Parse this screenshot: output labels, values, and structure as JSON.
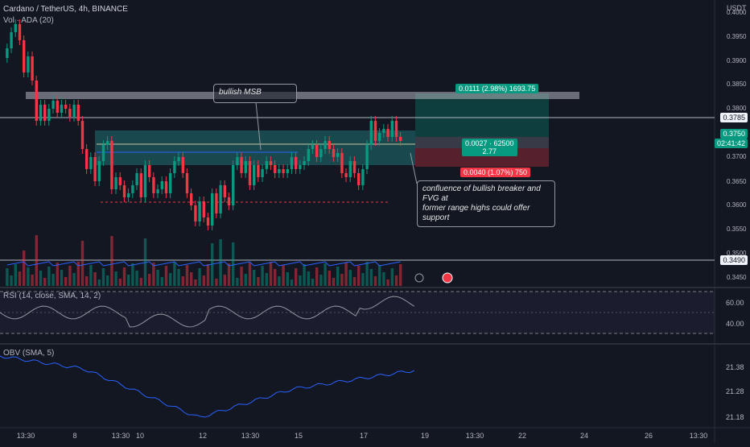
{
  "header": {
    "symbol_line": "Cardano / TetherUS, 4h, BINANCE",
    "volume_legend": "Vol · ADA (20)",
    "currency": "USDT"
  },
  "price_axis": {
    "ticks": [
      "0.4000",
      "0.3950",
      "0.3900",
      "0.3850",
      "0.3800",
      "0.3750",
      "0.3700",
      "0.3650",
      "0.3600",
      "0.3550",
      "0.3500",
      "0.3450"
    ],
    "marker_price": "0.3785",
    "current_price": "0.3750",
    "countdown": "02:41:42",
    "marker_low": "0.3490"
  },
  "rsi_panel": {
    "legend": "RSI (14, close, SMA, 14, 2)",
    "ticks": [
      "60.00",
      "40.00"
    ]
  },
  "obv_panel": {
    "legend": "OBV (SMA, 5)",
    "ticks": [
      "21.38",
      "21.28",
      "21.18"
    ]
  },
  "time_axis": {
    "labels": [
      "13:30",
      "8",
      "13:30",
      "10",
      "12",
      "13:30",
      "15",
      "17",
      "19",
      "13:30",
      "22",
      "24",
      "26",
      "13:30"
    ]
  },
  "annotations": {
    "msb_label": "bullish MSB",
    "support_note_line1": "confluence of bullish breaker and FVG at",
    "support_note_line2": "former range highs could offer support"
  },
  "position_tool": {
    "target_label": "0.0111 (2.98%) 1693.75",
    "entry_label_line1": "0.0027 · 62500",
    "entry_label_line2": "2.77",
    "stop_label": "0.0040 (1.07%) 750"
  },
  "colors": {
    "background": "#131722",
    "bull": "#089981",
    "bear": "#f23645",
    "rsi_line": "#9598a1",
    "obv_line": "#2962ff",
    "zone": "#1c5e63"
  }
}
